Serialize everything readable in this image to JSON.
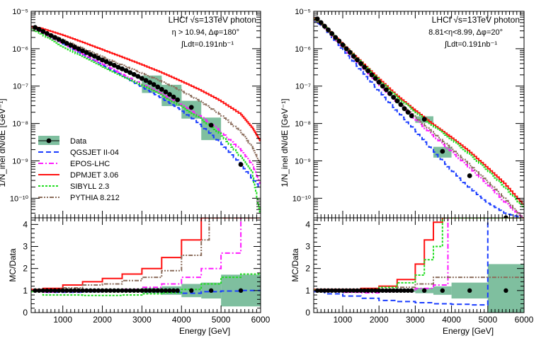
{
  "figure": {
    "x_axis_label": "Energy [GeV]",
    "upper_y_label": "1/N_inel dN/dE [GeV⁻¹]",
    "lower_y_label": "MC/Data"
  },
  "legend": [
    {
      "name": "Data",
      "color": "#7fbf9f",
      "style": "data"
    },
    {
      "name": "QGSJET II-04",
      "color": "#1a3cff",
      "style": "dash"
    },
    {
      "name": "EPOS-LHC",
      "color": "#ff1aff",
      "style": "dashdot"
    },
    {
      "name": "DPMJET 3.06",
      "color": "#ff1010",
      "style": "solid"
    },
    {
      "name": "SIBYLL 2.3",
      "color": "#20dd20",
      "style": "dot"
    },
    {
      "name": "PYTHIA 8.212",
      "color": "#8b6d5c",
      "style": "dashdotdot"
    }
  ],
  "colors": {
    "data_band": "#7fbf9f",
    "qgsjet": "#1a3cff",
    "epos": "#ff1aff",
    "dpmjet": "#ff1010",
    "sibyll": "#20dd20",
    "pythia": "#8b6d5c"
  },
  "chart_data": [
    {
      "type": "line",
      "panel": "left",
      "title": "LHCf √s=13TeV photon",
      "annotations": [
        "η > 10.94, Δφ=180°",
        "∫Ldt=0.191nb⁻¹"
      ],
      "xlabel": "Energy [GeV]",
      "ylabel": "1/N_inel dN/dE [GeV⁻¹]",
      "xlim": [
        200,
        6000
      ],
      "ylim_upper": [
        3e-11,
        1e-05
      ],
      "ylim_ratio": [
        0,
        4.3
      ],
      "x_ticks": [
        1000,
        2000,
        3000,
        4000,
        5000,
        6000
      ],
      "y_ticks_upper": [
        "10⁻¹⁰",
        "10⁻⁹",
        "10⁻⁸",
        "10⁻⁷",
        "10⁻⁶",
        "10⁻⁵"
      ],
      "y_ticks_ratio": [
        0,
        1,
        2,
        3,
        4
      ],
      "data": {
        "x": [
          300,
          400,
          500,
          600,
          700,
          800,
          900,
          1000,
          1100,
          1200,
          1300,
          1400,
          1500,
          1600,
          1700,
          1800,
          1900,
          2000,
          2100,
          2200,
          2300,
          2400,
          2500,
          2600,
          2700,
          2800,
          2900,
          3000,
          3100,
          3200,
          3300,
          3400,
          3500,
          3600,
          3700,
          3800,
          3900,
          4250,
          4750,
          5500
        ],
        "y": [
          3.7e-06,
          3.3e-06,
          2.9e-06,
          2.55e-06,
          2.25e-06,
          2e-06,
          1.77e-06,
          1.57e-06,
          1.39e-06,
          1.24e-06,
          1.1e-06,
          9.8e-07,
          8.8e-07,
          7.9e-07,
          7e-07,
          6.3e-07,
          5.6e-07,
          5e-07,
          4.5e-07,
          4e-07,
          3.6e-07,
          3.2e-07,
          2.9e-07,
          2.6e-07,
          2.3e-07,
          2.05e-07,
          1.82e-07,
          1.6e-07,
          1.42e-07,
          1.25e-07,
          1.1e-07,
          9.5e-08,
          8.2e-08,
          7e-08,
          6e-08,
          5.1e-08,
          4.3e-08,
          2.7e-08,
          9e-09,
          8e-10
        ],
        "syst_bins": [
          [
            200,
            3000,
            0.12
          ],
          [
            3000,
            3500,
            0.2
          ],
          [
            3500,
            4000,
            0.32
          ],
          [
            4000,
            4500,
            0.5
          ],
          [
            4500,
            5000,
            0.6
          ],
          [
            5000,
            6000,
            1.2
          ]
        ]
      },
      "series": [
        {
          "name": "QGSJET II-04",
          "x": [
            200,
            500,
            1000,
            1500,
            2000,
            2500,
            3000,
            3500,
            4000,
            4500,
            5000,
            5500,
            6000
          ],
          "y": [
            3.6e-06,
            2.8e-06,
            1.45e-06,
            7.5e-07,
            3.9e-07,
            2e-07,
            1e-07,
            5e-08,
            2.4e-08,
            9.5e-09,
            3.2e-09,
            9e-10,
            2e-10
          ]
        },
        {
          "name": "EPOS-LHC",
          "x": [
            200,
            500,
            1000,
            1500,
            2000,
            2500,
            3000,
            3500,
            4000,
            4500,
            5000,
            5500,
            5800,
            6000
          ],
          "y": [
            3.6e-06,
            2.8e-06,
            1.45e-06,
            7.7e-07,
            4.1e-07,
            2.2e-07,
            1.2e-07,
            6.5e-08,
            3.3e-08,
            1.6e-08,
            6.5e-09,
            2.1e-09,
            8e-10,
            2.5e-10
          ]
        },
        {
          "name": "DPMJET 3.06",
          "x": [
            200,
            500,
            1000,
            1500,
            2000,
            2500,
            3000,
            3500,
            4000,
            4500,
            5000,
            5500,
            5800,
            6000
          ],
          "y": [
            4e-06,
            3.5e-06,
            2.4e-06,
            1.55e-06,
            9.8e-07,
            6.2e-07,
            3.9e-07,
            2.4e-07,
            1.4e-07,
            8e-08,
            4.2e-08,
            1.9e-08,
            8e-09,
            3.5e-09
          ]
        },
        {
          "name": "SIBYLL 2.3",
          "x": [
            200,
            500,
            1000,
            1500,
            2000,
            2500,
            3000,
            3500,
            4000,
            4500,
            5000,
            5500,
            5800,
            6000
          ],
          "y": [
            3.5e-06,
            2.4e-06,
            1.2e-06,
            6.3e-07,
            3.5e-07,
            1.95e-07,
            1.1e-07,
            6e-08,
            3e-08,
            1.4e-08,
            5.5e-09,
            1.4e-09,
            5e-10,
            4e-11
          ]
        },
        {
          "name": "PYTHIA 8.212",
          "x": [
            200,
            500,
            1000,
            1500,
            2000,
            2500,
            3000,
            3500,
            4000,
            4500,
            5000,
            5500,
            5800,
            6000
          ],
          "y": [
            3.7e-06,
            3e-06,
            1.8e-06,
            1.07e-06,
            6.3e-07,
            3.8e-07,
            2.3e-07,
            1.38e-07,
            7.8e-08,
            4e-08,
            1.8e-08,
            6.5e-09,
            2.4e-09,
            9e-10
          ]
        }
      ],
      "ratios": [
        {
          "name": "QGSJET II-04",
          "x": [
            200,
            500,
            1000,
            1500,
            2000,
            2500,
            3000,
            3500,
            4000,
            4500,
            5000,
            5500,
            6000
          ],
          "y": [
            0.97,
            0.92,
            0.92,
            0.95,
            0.98,
            0.97,
            0.95,
            0.92,
            0.88,
            0.95,
            0.98,
            1.0,
            1.0
          ]
        },
        {
          "name": "EPOS-LHC",
          "x": [
            200,
            500,
            1000,
            1500,
            2000,
            2500,
            3000,
            3500,
            4000,
            4500,
            5000,
            5500,
            6000
          ],
          "y": [
            0.97,
            0.93,
            0.95,
            0.97,
            1.0,
            1.05,
            1.15,
            1.3,
            1.6,
            2.0,
            2.7,
            4.3,
            4.3
          ]
        },
        {
          "name": "DPMJET 3.06",
          "x": [
            200,
            500,
            1000,
            1500,
            2000,
            2500,
            3000,
            3500,
            4000,
            4500
          ],
          "y": [
            1.05,
            1.1,
            1.25,
            1.4,
            1.55,
            1.75,
            2.0,
            2.5,
            3.3,
            4.3
          ]
        },
        {
          "name": "SIBYLL 2.3",
          "x": [
            200,
            500,
            1000,
            1500,
            2000,
            2500,
            3000,
            3500,
            4000,
            4500,
            5000,
            5500,
            6000
          ],
          "y": [
            0.95,
            0.8,
            0.8,
            0.78,
            0.78,
            0.8,
            0.85,
            0.9,
            1.05,
            1.3,
            1.6,
            1.75,
            1.8
          ]
        },
        {
          "name": "PYTHIA 8.212",
          "x": [
            200,
            500,
            1000,
            1500,
            2000,
            2500,
            3000,
            3500,
            4000,
            4500,
            4700
          ],
          "y": [
            1.0,
            1.0,
            1.12,
            1.25,
            1.3,
            1.45,
            1.6,
            1.9,
            2.6,
            3.3,
            4.3
          ]
        }
      ]
    },
    {
      "type": "line",
      "panel": "right",
      "title": "LHCf √s=13TeV photon",
      "annotations": [
        "8.81<η<8.99, Δφ=20°",
        "∫Ldt=0.191nb⁻¹"
      ],
      "xlabel": "Energy [GeV]",
      "ylabel": "1/N_inel dN/dE [GeV⁻¹]",
      "xlim": [
        200,
        6000
      ],
      "ylim_upper": [
        3e-11,
        1e-05
      ],
      "ylim_ratio": [
        0,
        4.3
      ],
      "x_ticks": [
        1000,
        2000,
        3000,
        4000,
        5000,
        6000
      ],
      "y_ticks_upper": [
        "10⁻¹⁰",
        "10⁻⁹",
        "10⁻⁸",
        "10⁻⁷",
        "10⁻⁶",
        "10⁻⁵"
      ],
      "y_ticks_ratio": [
        0,
        1,
        2,
        3,
        4
      ],
      "data": {
        "x": [
          300,
          400,
          500,
          600,
          700,
          800,
          900,
          1000,
          1100,
          1200,
          1300,
          1400,
          1500,
          1600,
          1700,
          1800,
          1900,
          2000,
          2100,
          2200,
          2300,
          2400,
          2500,
          2600,
          2700,
          2800,
          2900,
          3250,
          3750,
          4500,
          5500
        ],
        "y": [
          6.3e-06,
          5e-06,
          4e-06,
          3.2e-06,
          2.55e-06,
          2e-06,
          1.6e-06,
          1.27e-06,
          1e-06,
          8e-07,
          6.3e-07,
          5e-07,
          4e-07,
          3.2e-07,
          2.55e-07,
          2e-07,
          1.6e-07,
          1.27e-07,
          1e-07,
          8e-08,
          6.3e-08,
          5e-08,
          4e-08,
          3.2e-08,
          2.5e-08,
          2e-08,
          1.6e-08,
          1.3e-08,
          1.8e-09,
          4e-10,
          3e-11
        ],
        "syst_bins": [
          [
            200,
            3000,
            0.12
          ],
          [
            3000,
            3500,
            0.2
          ],
          [
            3500,
            4000,
            0.32
          ],
          [
            4000,
            5000,
            0.6
          ],
          [
            5000,
            6000,
            2.0
          ]
        ]
      },
      "series": [
        {
          "name": "QGSJET II-04",
          "x": [
            200,
            500,
            1000,
            1500,
            2000,
            2500,
            3000,
            3500,
            4000,
            4500,
            5000,
            5500,
            6000
          ],
          "y": [
            6e-06,
            3.8e-06,
            1.05e-06,
            2.9e-07,
            8e-08,
            2.3e-08,
            7e-09,
            2e-09,
            6e-10,
            2e-10,
            8e-11,
            4e-11,
            3e-11
          ]
        },
        {
          "name": "EPOS-LHC",
          "x": [
            200,
            500,
            1000,
            1500,
            2000,
            2500,
            3000,
            3500,
            4000,
            4500,
            5000,
            5500,
            6000
          ],
          "y": [
            6.3e-06,
            4e-06,
            1.2e-06,
            3.8e-07,
            1.2e-07,
            4e-08,
            1.4e-08,
            5e-09,
            1.9e-09,
            7e-10,
            2.5e-10,
            8e-11,
            3e-11
          ]
        },
        {
          "name": "DPMJET 3.06",
          "x": [
            200,
            500,
            1000,
            1500,
            2000,
            2500,
            3000,
            3500,
            4000,
            4500,
            5000,
            5500,
            6000
          ],
          "y": [
            6.8e-06,
            4.3e-06,
            1.45e-06,
            5e-07,
            1.7e-07,
            6e-08,
            2.4e-08,
            1e-08,
            4.5e-09,
            1.9e-09,
            7e-10,
            2.5e-10,
            7e-11
          ]
        },
        {
          "name": "SIBYLL 2.3",
          "x": [
            200,
            500,
            1000,
            1500,
            2000,
            2500,
            3000,
            3500,
            4000,
            4500,
            5000,
            5500,
            6000
          ],
          "y": [
            6.5e-06,
            4.2e-06,
            1.4e-06,
            4.8e-07,
            1.6e-07,
            5.5e-08,
            2.2e-08,
            9e-09,
            4e-09,
            1.6e-09,
            6e-10,
            2e-10,
            6e-11
          ]
        },
        {
          "name": "PYTHIA 8.212",
          "x": [
            200,
            500,
            1000,
            1500,
            2000,
            2500,
            3000,
            3500,
            4000,
            4500,
            5000,
            5500,
            6000
          ],
          "y": [
            6.3e-06,
            4e-06,
            1.25e-06,
            4e-07,
            1.3e-07,
            4.5e-08,
            1.6e-08,
            6e-09,
            2.3e-09,
            8.5e-10,
            3e-10,
            1e-10,
            3e-11
          ]
        }
      ],
      "ratios": [
        {
          "name": "QGSJET II-04",
          "x": [
            200,
            500,
            1000,
            1500,
            2000,
            2500,
            3000,
            3500,
            4000,
            4500,
            5000,
            5500,
            6000
          ],
          "y": [
            0.95,
            0.85,
            0.75,
            0.65,
            0.55,
            0.5,
            0.45,
            0.4,
            0.38,
            0.35,
            4.3,
            4.3,
            4.3
          ]
        },
        {
          "name": "EPOS-LHC",
          "x": [
            200,
            500,
            1000,
            1500,
            2000,
            2500,
            3000,
            3500,
            3900,
            4000
          ],
          "y": [
            1.0,
            0.95,
            0.92,
            0.9,
            0.95,
            1.0,
            1.1,
            1.25,
            4.3,
            4.3
          ]
        },
        {
          "name": "DPMJET 3.06",
          "x": [
            200,
            500,
            1000,
            1500,
            2000,
            2500,
            3000,
            3250,
            3500,
            3750
          ],
          "y": [
            1.05,
            1.05,
            1.05,
            1.1,
            1.2,
            1.5,
            2.2,
            3.3,
            4.1,
            4.3
          ]
        },
        {
          "name": "SIBYLL 2.3",
          "x": [
            200,
            500,
            1000,
            1500,
            2000,
            2500,
            3000,
            3250,
            3500,
            3750
          ],
          "y": [
            1.02,
            1.0,
            1.0,
            1.05,
            1.15,
            1.35,
            1.7,
            2.4,
            3.0,
            4.3
          ]
        },
        {
          "name": "PYTHIA 8.212",
          "x": [
            200,
            500,
            1000,
            1500,
            2000,
            2500,
            3000,
            3500,
            4000
          ],
          "y": [
            1.0,
            0.98,
            0.98,
            1.0,
            1.05,
            1.15,
            1.3,
            1.6,
            1.6
          ]
        }
      ]
    }
  ]
}
